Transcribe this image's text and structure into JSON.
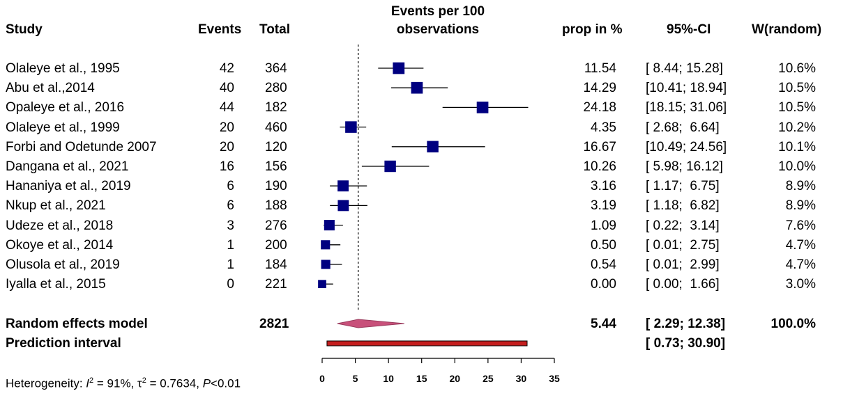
{
  "headers": {
    "study": "Study",
    "events": "Events",
    "total": "Total",
    "plot_title_line1": "Events per 100",
    "plot_title_line2": "observations",
    "prop": "prop in %",
    "ci": "95%-CI",
    "weight": "W(random)"
  },
  "colors": {
    "square": "#000080",
    "diamond": "#c8507a",
    "prediction_bar": "#c41e1e"
  },
  "chart_data": {
    "type": "forest",
    "xlim": [
      0,
      35
    ],
    "x_ticks": [
      0,
      5,
      10,
      15,
      20,
      25,
      30,
      35
    ],
    "reference_line": 5.44,
    "studies": [
      {
        "study": "Olaleye et al., 1995",
        "events": "42",
        "total": "364",
        "prop": 11.54,
        "lo": 8.44,
        "hi": 15.28,
        "prop_text": "11.54",
        "ci_text": "[ 8.44; 15.28]",
        "weight_text": "10.6%",
        "weight": 10.6
      },
      {
        "study": "Abu et al.,2014",
        "events": "40",
        "total": "280",
        "prop": 14.29,
        "lo": 10.41,
        "hi": 18.94,
        "prop_text": "14.29",
        "ci_text": "[10.41; 18.94]",
        "weight_text": "10.5%",
        "weight": 10.5
      },
      {
        "study": "Opaleye et al., 2016",
        "events": "44",
        "total": "182",
        "prop": 24.18,
        "lo": 18.15,
        "hi": 31.06,
        "prop_text": "24.18",
        "ci_text": "[18.15; 31.06]",
        "weight_text": "10.5%",
        "weight": 10.5
      },
      {
        "study": "Olaleye et al., 1999",
        "events": "20",
        "total": "460",
        "prop": 4.35,
        "lo": 2.68,
        "hi": 6.64,
        "prop_text": "4.35",
        "ci_text": "[ 2.68;  6.64]",
        "weight_text": "10.2%",
        "weight": 10.2
      },
      {
        "study": "Forbi and Odetunde 2007",
        "events": "20",
        "total": "120",
        "prop": 16.67,
        "lo": 10.49,
        "hi": 24.56,
        "prop_text": "16.67",
        "ci_text": "[10.49; 24.56]",
        "weight_text": "10.1%",
        "weight": 10.1
      },
      {
        "study": "Dangana et al., 2021",
        "events": "16",
        "total": "156",
        "prop": 10.26,
        "lo": 5.98,
        "hi": 16.12,
        "prop_text": "10.26",
        "ci_text": "[ 5.98; 16.12]",
        "weight_text": "10.0%",
        "weight": 10.0
      },
      {
        "study": "Hananiya et al., 2019",
        "events": "6",
        "total": "190",
        "prop": 3.16,
        "lo": 1.17,
        "hi": 6.75,
        "prop_text": "3.16",
        "ci_text": "[ 1.17;  6.75]",
        "weight_text": "8.9%",
        "weight": 8.9
      },
      {
        "study": "Nkup et al., 2021",
        "events": "6",
        "total": "188",
        "prop": 3.19,
        "lo": 1.18,
        "hi": 6.82,
        "prop_text": "3.19",
        "ci_text": "[ 1.18;  6.82]",
        "weight_text": "8.9%",
        "weight": 8.9
      },
      {
        "study": "Udeze et al., 2018",
        "events": "3",
        "total": "276",
        "prop": 1.09,
        "lo": 0.22,
        "hi": 3.14,
        "prop_text": "1.09",
        "ci_text": "[ 0.22;  3.14]",
        "weight_text": "7.6%",
        "weight": 7.6
      },
      {
        "study": "Okoye et al., 2014",
        "events": "1",
        "total": "200",
        "prop": 0.5,
        "lo": 0.01,
        "hi": 2.75,
        "prop_text": "0.50",
        "ci_text": "[ 0.01;  2.75]",
        "weight_text": "4.7%",
        "weight": 4.7
      },
      {
        "study": "Olusola et al., 2019",
        "events": "1",
        "total": "184",
        "prop": 0.54,
        "lo": 0.01,
        "hi": 2.99,
        "prop_text": "0.54",
        "ci_text": "[ 0.01;  2.99]",
        "weight_text": "4.7%",
        "weight": 4.7
      },
      {
        "study": "Iyalla et al., 2015",
        "events": "0",
        "total": "221",
        "prop": 0.0,
        "lo": 0.0,
        "hi": 1.66,
        "prop_text": "0.00",
        "ci_text": "[ 0.00;  1.66]",
        "weight_text": "3.0%",
        "weight": 3.0
      }
    ],
    "random_effects": {
      "label": "Random effects model",
      "total": "2821",
      "prop": 5.44,
      "lo": 2.29,
      "hi": 12.38,
      "prop_text": "5.44",
      "ci_text": "[ 2.29; 12.38]",
      "weight_text": "100.0%"
    },
    "prediction_interval": {
      "label": "Prediction interval",
      "lo": 0.73,
      "hi": 30.9,
      "ci_text": "[ 0.73; 30.90]"
    }
  },
  "heterogeneity": {
    "prefix": "Heterogeneity: ",
    "i_symbol": "I",
    "i_exp": "2",
    "i_value": " = 91%, ",
    "tau_symbol": "τ",
    "tau_exp": "2",
    "tau_value": " = 0.7634, ",
    "p_symbol": "P",
    "p_value": "<0.01"
  }
}
